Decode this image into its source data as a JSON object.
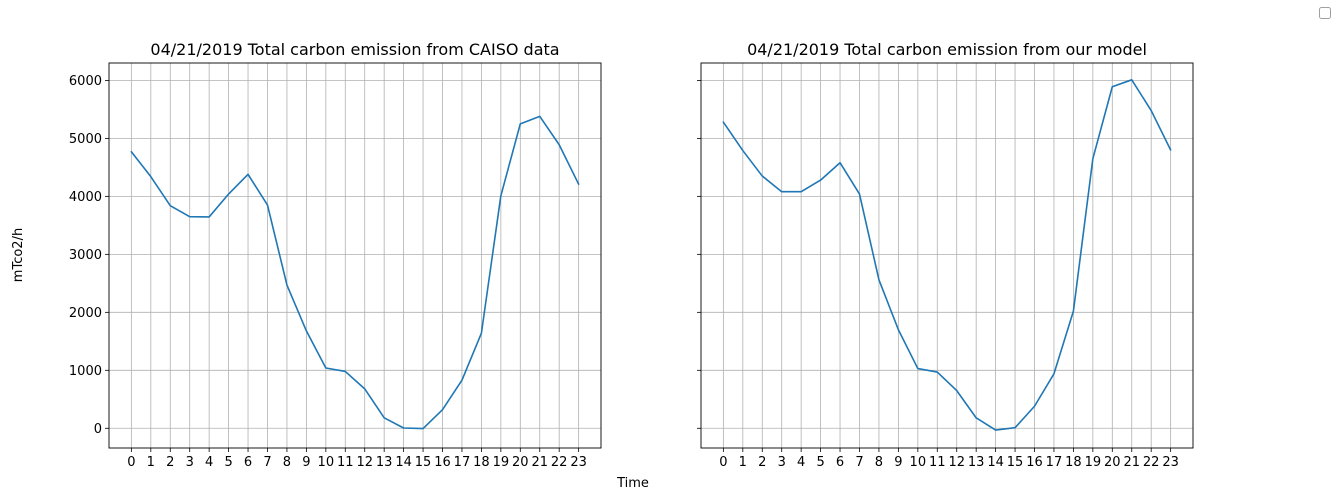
{
  "figure": {
    "shared_ylabel": "mTco2/h",
    "shared_xlabel": "Time"
  },
  "chart_data": [
    {
      "type": "line",
      "title": "04/21/2019 Total carbon emission from CAISO data",
      "xlabel": "",
      "ylabel": "",
      "grid": true,
      "x": [
        0,
        1,
        2,
        3,
        4,
        5,
        6,
        7,
        8,
        9,
        10,
        11,
        12,
        13,
        14,
        15,
        16,
        17,
        18,
        19,
        20,
        21,
        22,
        23
      ],
      "xticks": [
        "0",
        "1",
        "2",
        "3",
        "4",
        "5",
        "6",
        "7",
        "8",
        "9",
        "10",
        "11",
        "12",
        "13",
        "14",
        "15",
        "16",
        "17",
        "18",
        "19",
        "20",
        "21",
        "22",
        "23"
      ],
      "ylim": [
        -340,
        6300
      ],
      "yticks": [
        0,
        1000,
        2000,
        3000,
        4000,
        5000,
        6000
      ],
      "series": [
        {
          "color": "#1f77b4",
          "values": [
            4770,
            4340,
            3840,
            3650,
            3645,
            4040,
            4380,
            3850,
            2470,
            1680,
            1040,
            980,
            680,
            180,
            5,
            -5,
            320,
            830,
            1640,
            4010,
            5250,
            5380,
            4890,
            4210
          ]
        }
      ]
    },
    {
      "type": "line",
      "title": "04/21/2019 Total carbon emission from our model",
      "xlabel": "",
      "ylabel": "",
      "grid": true,
      "x": [
        0,
        1,
        2,
        3,
        4,
        5,
        6,
        7,
        8,
        9,
        10,
        11,
        12,
        13,
        14,
        15,
        16,
        17,
        18,
        19,
        20,
        21,
        22,
        23
      ],
      "xticks": [
        "0",
        "1",
        "2",
        "3",
        "4",
        "5",
        "6",
        "7",
        "8",
        "9",
        "10",
        "11",
        "12",
        "13",
        "14",
        "15",
        "16",
        "17",
        "18",
        "19",
        "20",
        "21",
        "22",
        "23"
      ],
      "ylim": [
        -340,
        6300
      ],
      "yticks": [
        0,
        1000,
        2000,
        3000,
        4000,
        5000,
        6000
      ],
      "series": [
        {
          "color": "#1f77b4",
          "values": [
            5280,
            4790,
            4350,
            4080,
            4080,
            4280,
            4580,
            4040,
            2560,
            1700,
            1030,
            970,
            650,
            180,
            -30,
            10,
            380,
            940,
            2020,
            4650,
            5890,
            6010,
            5480,
            4800
          ]
        }
      ]
    }
  ]
}
